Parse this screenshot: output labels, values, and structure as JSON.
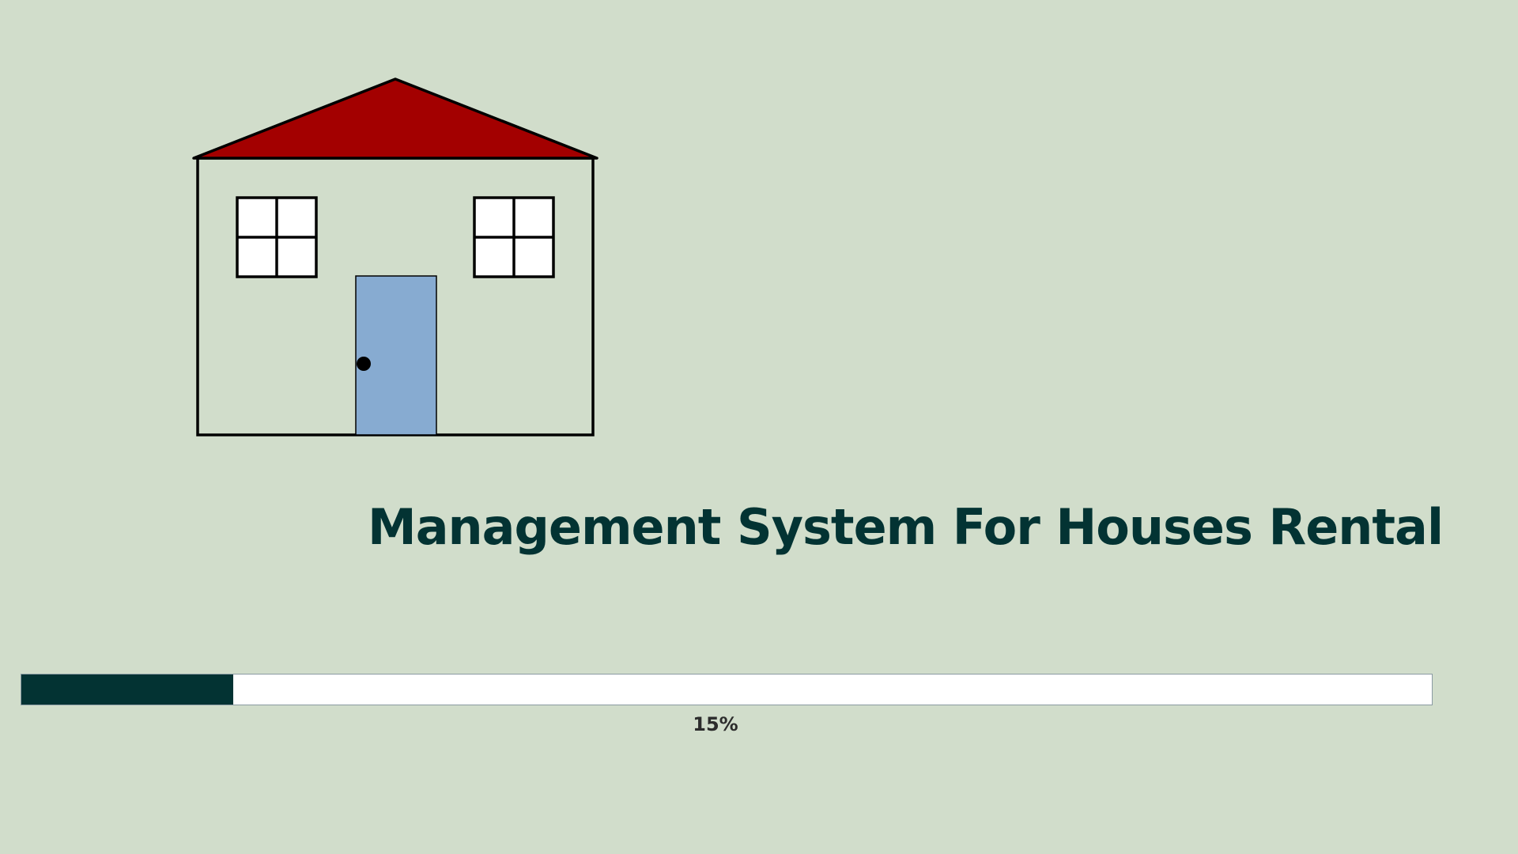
{
  "app": {
    "title": "Management System  For Houses Rental"
  },
  "logo": {
    "icon": "house-icon",
    "roof_color": "#a30000",
    "door_color": "#87abd1",
    "wall_color": "#d1ddcb",
    "window_color": "#ffffff"
  },
  "loading": {
    "progress_fraction": 0.15,
    "progress_label": "15%",
    "fill_color": "#033333",
    "track_color": "#ffffff"
  },
  "theme": {
    "background": "#d1ddcb",
    "title_color": "#033333"
  }
}
